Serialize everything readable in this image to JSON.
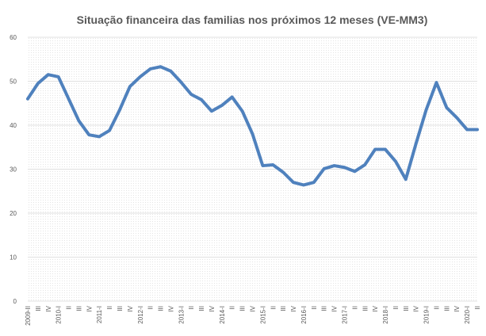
{
  "chart_data": {
    "type": "line",
    "title": "Situação financeira das familias nos próximos 12 meses (VE-MM3)",
    "categories": [
      "2009-II",
      "III",
      "IV",
      "2010-I",
      "II",
      "III",
      "IV",
      "2011-I",
      "II",
      "III",
      "IV",
      "2012-I",
      "II",
      "III",
      "IV",
      "2013-I",
      "II",
      "III",
      "IV",
      "2014-I",
      "II",
      "III",
      "IV",
      "2015-I",
      "II",
      "III",
      "IV",
      "2016-I",
      "II",
      "III",
      "IV",
      "2017-I",
      "II",
      "III",
      "IV",
      "2018-I",
      "II",
      "III",
      "IV",
      "2019-I",
      "II",
      "III",
      "IV",
      "2020-I",
      "II"
    ],
    "series": [
      {
        "name": "Situação financeira",
        "color": "#4f81bd",
        "values": [
          46,
          49.5,
          51.5,
          51,
          46,
          41,
          37.8,
          37.4,
          38.8,
          43.5,
          48.8,
          51,
          52.8,
          53.3,
          52.3,
          49.8,
          47,
          45.8,
          43.2,
          44.5,
          46.4,
          43.2,
          38,
          30.8,
          31,
          29.3,
          27,
          26.4,
          27,
          30.1,
          30.8,
          30.4,
          29.5,
          31,
          34.5,
          34.5,
          31.8,
          27.7,
          35.8,
          43.5,
          49.7,
          44,
          41.7,
          39,
          39
        ]
      }
    ],
    "ylim": [
      0,
      60
    ],
    "yticks": [
      0,
      10,
      20,
      30,
      40,
      50,
      60
    ],
    "grid": true
  }
}
